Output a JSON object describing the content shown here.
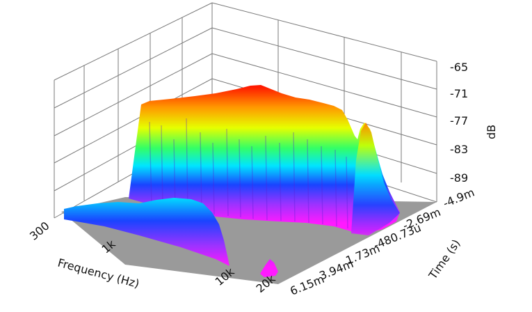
{
  "chart_data": {
    "type": "waterfall-3d",
    "xlabel": "Frequency (Hz)",
    "ylabel": "Time (s)",
    "zlabel": "dB",
    "x_ticks": [
      "300",
      "1k",
      "10k",
      "20k"
    ],
    "y_ticks": [
      "-4.9m",
      "-2.69m",
      "-480.73u",
      "1.73m",
      "3.94m",
      "6.15m"
    ],
    "z_ticks": [
      "-65",
      "-71",
      "-77",
      "-83",
      "-89"
    ],
    "xlim": [
      300,
      20000
    ],
    "ylim": [
      -0.0049,
      0.00615
    ],
    "zlim": [
      -95,
      -65
    ],
    "grid": true,
    "colormap": "rainbow",
    "floor_color": "#9a9a9a",
    "surfaces": [
      {
        "name": "",
        "time": -0.0049,
        "freq": [
          380,
          600,
          1000,
          2000,
          5000,
          9000,
          12000,
          14500,
          17000,
          18500,
          20000
        ],
        "db": [
          -90,
          -70,
          -68,
          -68,
          -67.5,
          -66,
          -67.5,
          -70,
          -69,
          -75,
          -92
        ]
      },
      {
        "name": "",
        "time": 0.00615,
        "freq": [
          300,
          800,
          2000,
          3500,
          6000,
          8000,
          9500,
          10500
        ],
        "db": [
          -91.5,
          -90.5,
          -90,
          -88.5,
          -89.5,
          -91,
          -94,
          -95
        ]
      }
    ]
  }
}
